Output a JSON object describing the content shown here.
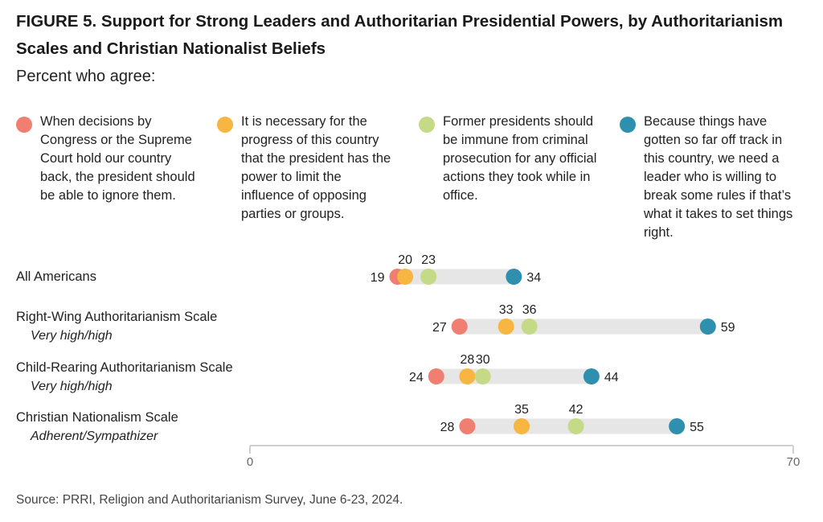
{
  "title": "FIGURE 5.  Support for Strong Leaders and Authoritarian Presidential Powers, by Authoritarianism Scales and Christian Nationalist Beliefs",
  "subtitle": "Percent who agree:",
  "source": "Source: PRRI, Religion and Authoritarianism Survey, June 6-23, 2024.",
  "legend": [
    {
      "text": "When decisions by Congress or the Supreme Court hold our country back, the president should be able to ignore them.",
      "color": "#F07F72"
    },
    {
      "text": "It is necessary for the progress of this country that the president has the power to limit the influence of opposing parties or groups.",
      "color": "#F7B541"
    },
    {
      "text": "Former presidents should be immune from criminal prosecution for any official actions they took while in office.",
      "color": "#C5DA86"
    },
    {
      "text": "Because things have gotten so far off track in this country, we need a leader who is willing to break some rules if that’s what it takes to set things right.",
      "color": "#2E8FAE"
    }
  ],
  "rows": [
    {
      "label": "All Americans",
      "sublabel": ""
    },
    {
      "label": "Right-Wing Authoritarianism Scale",
      "sublabel": "Very high/high"
    },
    {
      "label": "Child-Rearing Authoritarianism Scale",
      "sublabel": "Very high/high"
    },
    {
      "label": "Christian Nationalism Scale",
      "sublabel": "Adherent/Sympathizer"
    }
  ],
  "chart_data": {
    "type": "scatter",
    "subtype": "dot-plot",
    "categories": [
      "All Americans",
      "Right-Wing Authoritarianism Scale",
      "Child-Rearing Authoritarianism Scale",
      "Christian Nationalism Scale"
    ],
    "series": [
      {
        "name": "When decisions by Congress or the Supreme Court hold our country back, the president should be able to ignore them.",
        "color": "#F07F72",
        "values": [
          19,
          27,
          24,
          28
        ]
      },
      {
        "name": "It is necessary for the progress of this country that the president has the power to limit the influence of opposing parties or groups.",
        "color": "#F7B541",
        "values": [
          20,
          33,
          28,
          35
        ]
      },
      {
        "name": "Former presidents should be immune from criminal prosecution for any official actions they took while in office.",
        "color": "#C5DA86",
        "values": [
          23,
          36,
          30,
          42
        ]
      },
      {
        "name": "Because things have gotten so far off track in this country, we need a leader who is willing to break some rules if that’s what it takes to set things right.",
        "color": "#2E8FAE",
        "values": [
          34,
          59,
          44,
          55
        ]
      }
    ],
    "xlim": [
      0,
      70
    ],
    "xticks": [
      0,
      70
    ],
    "label_position": [
      "left",
      "above",
      "above",
      "right"
    ]
  }
}
